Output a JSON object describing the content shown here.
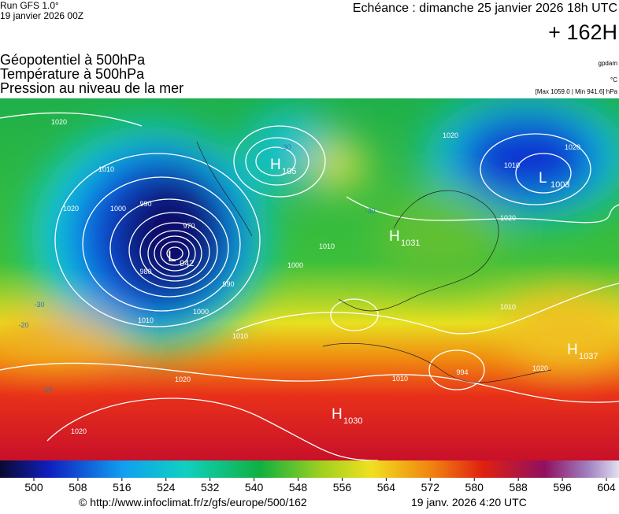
{
  "header": {
    "run": "Run GFS 1.0°",
    "date": "19 janvier 2026 00Z",
    "echeance": "Echéance : dimanche 25 janvier 2026 18h UTC",
    "lead": "+ 162H"
  },
  "fields": [
    "Géopotentiel à 500hPa",
    "Température à 500hPa",
    "Pression au niveau de la mer"
  ],
  "units": [
    "gpdam",
    "°C",
    "[Max 1059.0 | Min 941.6] hPa"
  ],
  "map": {
    "centers": [
      {
        "type": "L",
        "value": "942"
      },
      {
        "type": "H",
        "value": "105"
      },
      {
        "type": "H",
        "value": "1031"
      },
      {
        "type": "L",
        "value": "1003"
      },
      {
        "type": "H",
        "value": "1030"
      },
      {
        "type": "H",
        "value": "1037"
      }
    ],
    "contour_labels": [
      "1020",
      "1010",
      "1020",
      "1000",
      "990",
      "970",
      "980",
      "990",
      "1000",
      "1010",
      "1000",
      "1010",
      "1010",
      "1020",
      "1020",
      "1020",
      "1020",
      "1010",
      "1020",
      "1010",
      "1010",
      "1020",
      "994",
      "-30",
      "-30",
      "-30",
      "-20",
      "-10"
    ]
  },
  "colorbar": {
    "ticks": [
      500,
      508,
      516,
      524,
      532,
      540,
      548,
      556,
      564,
      572,
      580,
      588,
      596,
      604
    ]
  },
  "footer": {
    "url": "© http://www.infoclimat.fr/z/gfs/europe/500/162",
    "time": "19 janv. 2026  4:20 UTC"
  }
}
